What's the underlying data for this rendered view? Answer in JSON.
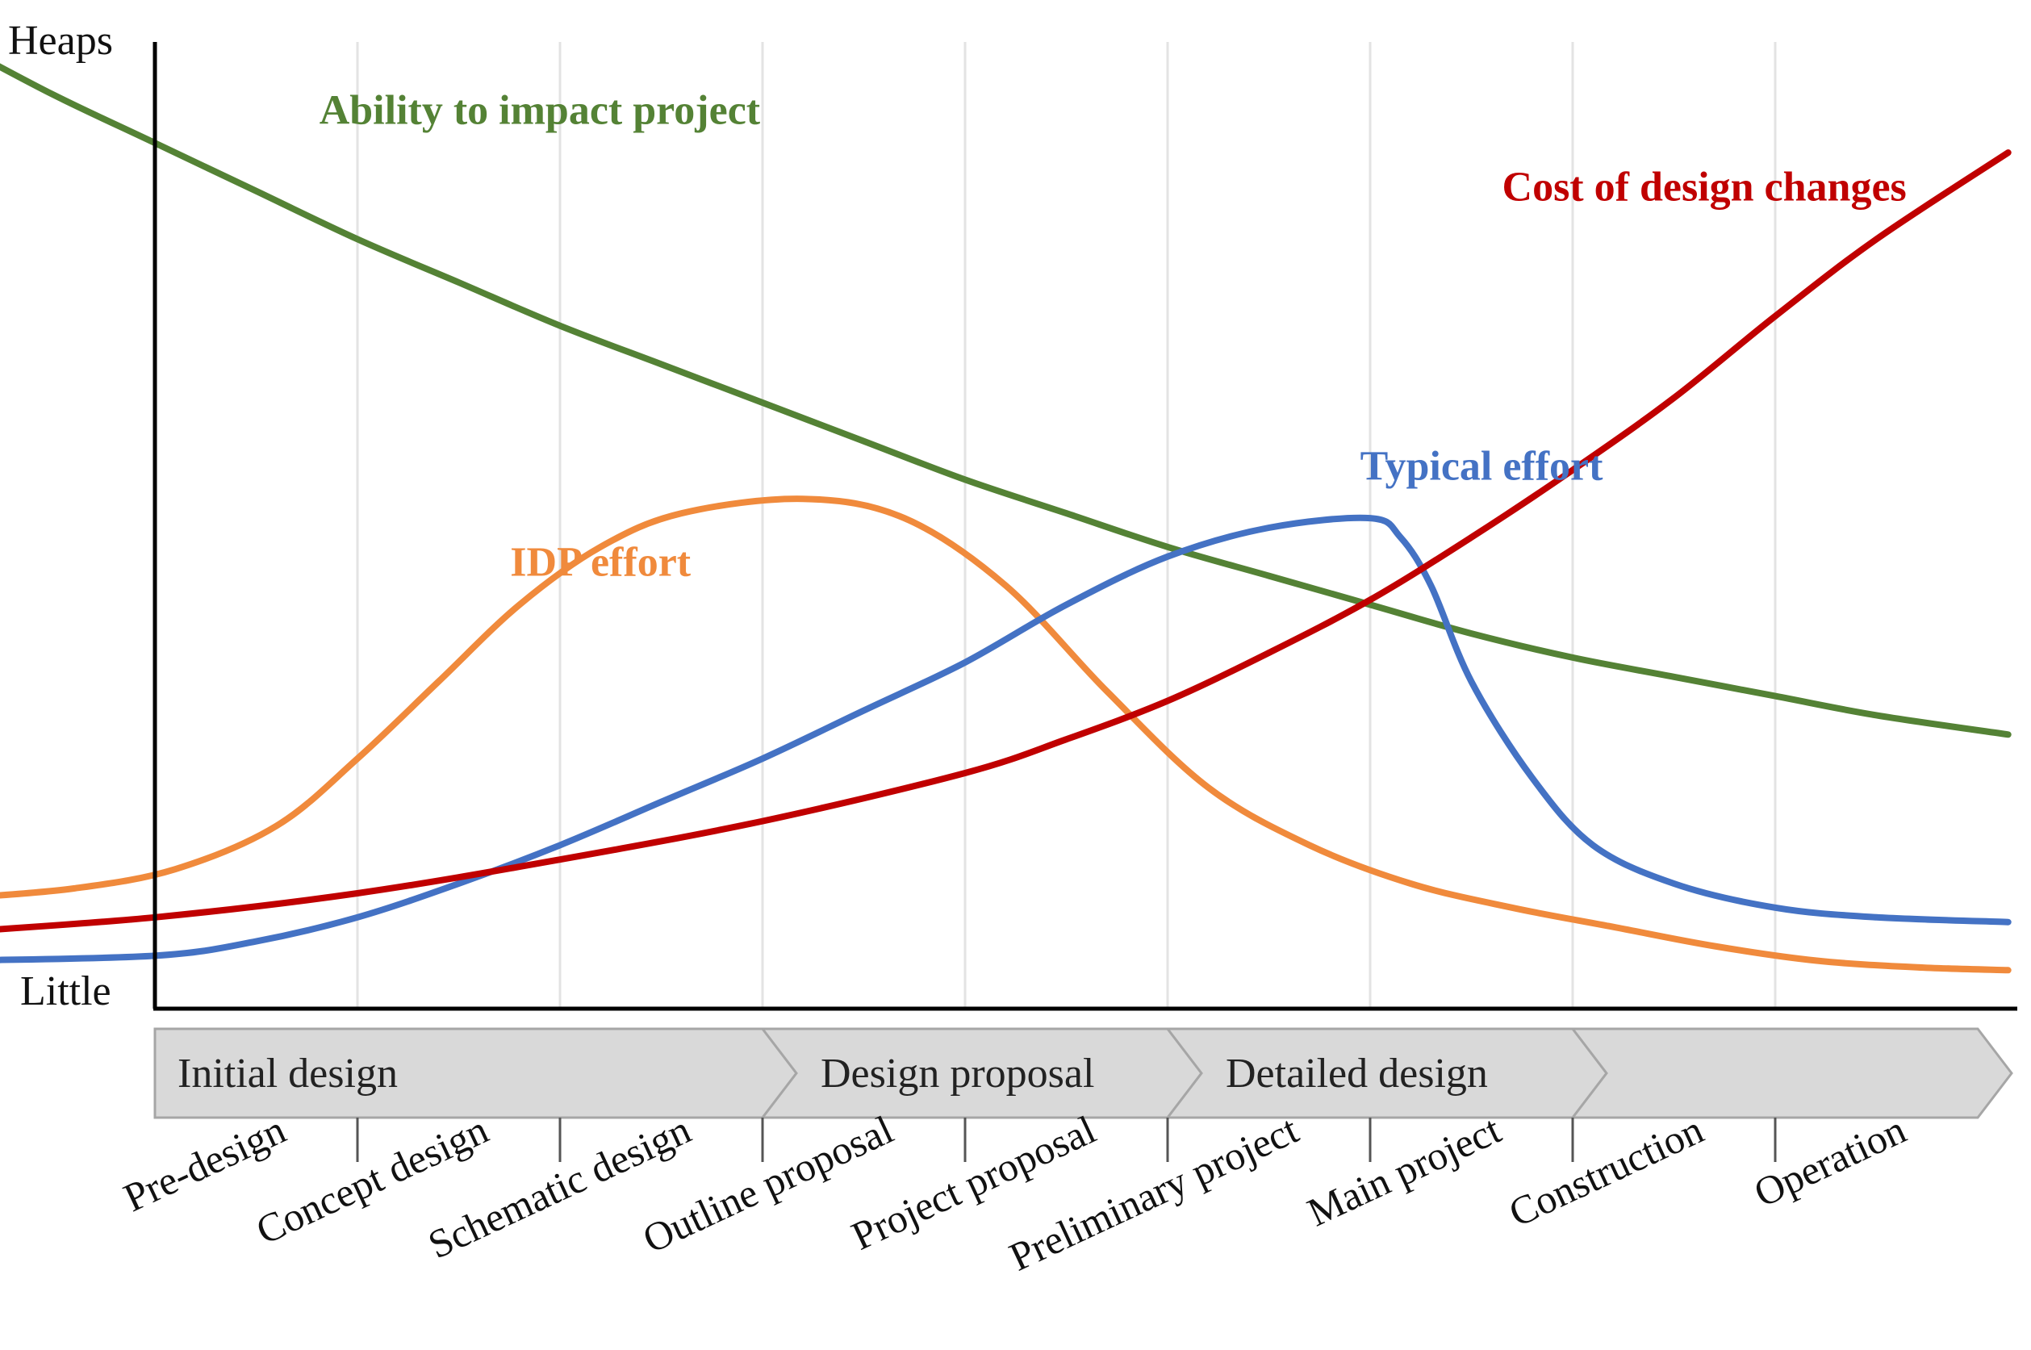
{
  "chart_data": {
    "type": "line",
    "title": "",
    "x_unit": "project stage index",
    "y_unit": "relative level (0 = Little, 100 = Heaps)",
    "ylim": [
      0,
      100
    ],
    "y_axis_labels": {
      "top": "Heaps",
      "bottom": "Little"
    },
    "grid": true,
    "categories": [
      "Pre-design",
      "Concept design",
      "Schematic design",
      "Outline proposal",
      "Project proposal",
      "Preliminary project",
      "Main project",
      "Construction",
      "Operation"
    ],
    "phases": [
      {
        "label": "Initial design",
        "start": 0,
        "end": 3
      },
      {
        "label": "Design proposal",
        "start": 3,
        "end": 5
      },
      {
        "label": "Detailed design",
        "start": 5,
        "end": 7
      },
      {
        "label": "",
        "start": 7,
        "end": 9
      }
    ],
    "series": [
      {
        "name": "Ability to impact project",
        "color": "#548235",
        "label_at": [
          1.9,
          92
        ],
        "x": [
          -0.95,
          -0.5,
          0,
          0.5,
          1,
          1.5,
          2,
          2.5,
          3,
          3.5,
          4,
          4.5,
          5,
          5.5,
          6,
          6.5,
          7,
          7.5,
          8,
          8.5,
          9.15
        ],
        "y": [
          100,
          95,
          90,
          85,
          80,
          75.5,
          71,
          67,
          63,
          59,
          55,
          51.5,
          48,
          45,
          42,
          39,
          36.5,
          34.5,
          32.5,
          30.5,
          28.5
        ]
      },
      {
        "name": "Cost of design changes",
        "color": "#C00000",
        "label_at": [
          7.65,
          84
        ],
        "x": [
          -0.95,
          0,
          1,
          2,
          3,
          4,
          4.5,
          5,
          5.5,
          6,
          6.5,
          7,
          7.5,
          8,
          8.5,
          9.15
        ],
        "y": [
          8,
          9.5,
          12,
          15.5,
          19.5,
          24.5,
          28,
          32,
          37,
          42.5,
          49,
          56,
          63.5,
          72,
          80,
          89
        ]
      },
      {
        "name": "IDP effort",
        "color": "#F08A3C",
        "label_at": [
          2.2,
          45
        ],
        "x": [
          -0.95,
          -0.4,
          0.1,
          0.6,
          1.0,
          1.4,
          1.8,
          2.2,
          2.6,
          3.2,
          3.7,
          4.2,
          4.7,
          5.2,
          5.7,
          6.2,
          6.7,
          7.2,
          7.7,
          8.2,
          8.7,
          9.15
        ],
        "y": [
          11.5,
          12.5,
          14.5,
          19,
          26,
          34,
          42,
          48,
          51.5,
          53,
          51,
          44,
          33,
          23,
          17,
          13,
          10.5,
          8.5,
          6.5,
          5,
          4.3,
          4
        ]
      },
      {
        "name": "Typical effort",
        "color": "#4472C4",
        "label_at": [
          6.55,
          55
        ],
        "x": [
          -0.95,
          0,
          0.5,
          1,
          1.5,
          2,
          2.5,
          3,
          3.5,
          4,
          4.5,
          5,
          5.5,
          6,
          6.15,
          6.3,
          6.5,
          6.8,
          7.1,
          7.5,
          8,
          8.5,
          9.15
        ],
        "y": [
          5,
          5.5,
          7,
          9.5,
          13,
          17,
          21.5,
          26,
          31,
          36,
          42,
          47,
          50,
          51,
          49,
          44,
          34,
          24,
          17,
          13,
          10.5,
          9.5,
          9
        ]
      }
    ]
  }
}
